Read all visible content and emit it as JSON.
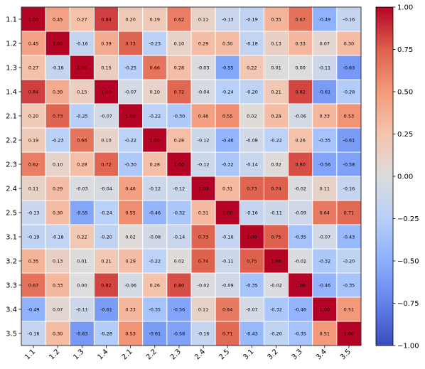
{
  "chart_data": {
    "type": "heatmap",
    "title": "",
    "xlabel": "",
    "ylabel": "",
    "labels": [
      "1.1",
      "1.2",
      "1.3",
      "1.4",
      "2.1",
      "2.2",
      "2.3",
      "2.4",
      "2.5",
      "3.1",
      "3.2",
      "3.3",
      "3.4",
      "3.5"
    ],
    "matrix": [
      [
        1.0,
        0.45,
        0.27,
        0.84,
        0.2,
        0.19,
        0.62,
        0.11,
        -0.13,
        -0.19,
        0.35,
        0.67,
        -0.49,
        -0.16
      ],
      [
        0.45,
        1.0,
        -0.16,
        0.39,
        0.73,
        -0.23,
        0.1,
        0.29,
        0.3,
        -0.18,
        0.13,
        0.33,
        0.07,
        0.3
      ],
      [
        0.27,
        -0.16,
        1.0,
        0.15,
        -0.25,
        0.66,
        0.28,
        -0.03,
        -0.55,
        0.22,
        0.01,
        0.0,
        -0.11,
        -0.63
      ],
      [
        0.84,
        0.39,
        0.15,
        1.0,
        -0.07,
        0.1,
        0.72,
        -0.04,
        -0.24,
        -0.2,
        0.21,
        0.82,
        -0.61,
        -0.28
      ],
      [
        0.2,
        0.73,
        -0.25,
        -0.07,
        1.0,
        -0.22,
        -0.3,
        0.46,
        0.55,
        0.02,
        0.29,
        -0.06,
        0.33,
        0.53
      ],
      [
        0.19,
        -0.23,
        0.66,
        0.1,
        -0.22,
        1.0,
        0.28,
        -0.12,
        -0.46,
        -0.08,
        -0.22,
        0.26,
        -0.35,
        -0.61
      ],
      [
        0.62,
        0.1,
        0.28,
        0.72,
        -0.3,
        0.28,
        1.0,
        -0.12,
        -0.32,
        -0.14,
        0.02,
        0.8,
        -0.56,
        -0.58
      ],
      [
        0.11,
        0.29,
        -0.03,
        -0.04,
        0.46,
        -0.12,
        -0.12,
        1.0,
        0.31,
        0.73,
        0.74,
        -0.02,
        0.11,
        -0.16
      ],
      [
        -0.13,
        0.3,
        -0.55,
        -0.24,
        0.55,
        -0.46,
        -0.32,
        0.31,
        1.0,
        -0.16,
        -0.11,
        -0.09,
        0.64,
        0.71
      ],
      [
        -0.19,
        -0.18,
        0.22,
        -0.2,
        0.02,
        -0.08,
        -0.14,
        0.73,
        -0.16,
        1.0,
        0.75,
        -0.35,
        -0.07,
        -0.43
      ],
      [
        0.35,
        0.13,
        0.01,
        0.21,
        0.29,
        -0.22,
        0.02,
        0.74,
        -0.11,
        0.75,
        1.0,
        -0.02,
        -0.32,
        -0.2
      ],
      [
        0.67,
        0.33,
        0.0,
        0.82,
        -0.06,
        0.26,
        0.8,
        -0.02,
        -0.09,
        -0.35,
        -0.02,
        1.0,
        -0.46,
        -0.35
      ],
      [
        -0.49,
        0.07,
        -0.11,
        -0.61,
        0.33,
        -0.35,
        -0.56,
        0.11,
        0.64,
        -0.07,
        -0.32,
        -0.46,
        1.0,
        0.51
      ],
      [
        -0.16,
        0.3,
        -0.63,
        -0.28,
        0.53,
        -0.61,
        -0.58,
        -0.16,
        0.71,
        -0.43,
        -0.2,
        -0.35,
        0.51,
        1.0
      ]
    ],
    "value_range": [
      -1.0,
      1.0
    ],
    "colormap": "coolwarm",
    "colorbar_ticks": [
      1.0,
      0.75,
      0.5,
      0.25,
      0.0,
      -0.25,
      -0.5,
      -0.75,
      -1.0
    ],
    "colorbar_tick_labels": [
      "1.00",
      "0.75",
      "0.50",
      "0.25",
      "0.00",
      "−0.25",
      "−0.50",
      "−0.75",
      "−1.00"
    ],
    "cell_value_format": "2 decimals",
    "grid": false,
    "cell_border_color": "#ffffff",
    "legend": "colorbar right"
  }
}
